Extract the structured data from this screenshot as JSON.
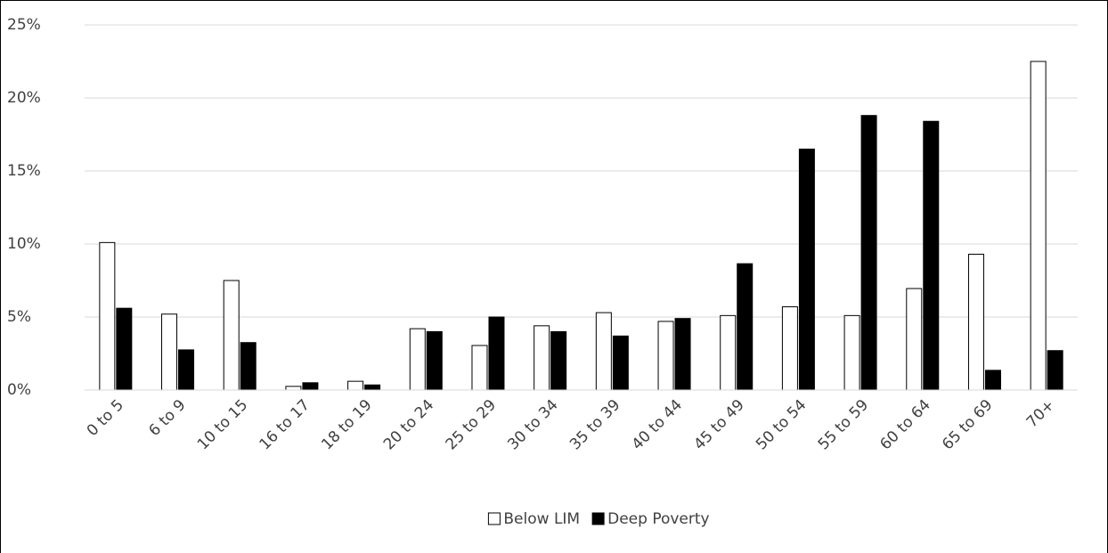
{
  "chart_data": {
    "type": "bar",
    "categories": [
      "0 to 5",
      "6 to 9",
      "10 to 15",
      "16 to 17",
      "18 to 19",
      "20 to 24",
      "25 to 29",
      "30 to 34",
      "35 to 39",
      "40 to 44",
      "45 to 49",
      "50 to 54",
      "55 to 59",
      "60 to 64",
      "65 to 69",
      "70+"
    ],
    "series": [
      {
        "name": "Below LIM",
        "color": "#ffffff",
        "values": [
          10.1,
          5.2,
          7.5,
          0.25,
          0.6,
          4.2,
          3.05,
          4.4,
          5.3,
          4.7,
          5.1,
          5.7,
          5.1,
          6.95,
          9.3,
          22.5
        ]
      },
      {
        "name": "Deep Poverty",
        "color": "#000000",
        "values": [
          5.6,
          2.75,
          3.25,
          0.5,
          0.35,
          4.0,
          5.0,
          4.0,
          3.7,
          4.9,
          8.65,
          16.5,
          18.8,
          18.4,
          1.35,
          2.7
        ]
      }
    ],
    "ylim": [
      0,
      25
    ],
    "yticks": [
      {
        "value": 0,
        "label": "0%"
      },
      {
        "value": 5,
        "label": "5%"
      },
      {
        "value": 10,
        "label": "10%"
      },
      {
        "value": 15,
        "label": "15%"
      },
      {
        "value": 20,
        "label": "20%"
      },
      {
        "value": 25,
        "label": "25%"
      }
    ],
    "grid": true,
    "legend": "bottom"
  }
}
